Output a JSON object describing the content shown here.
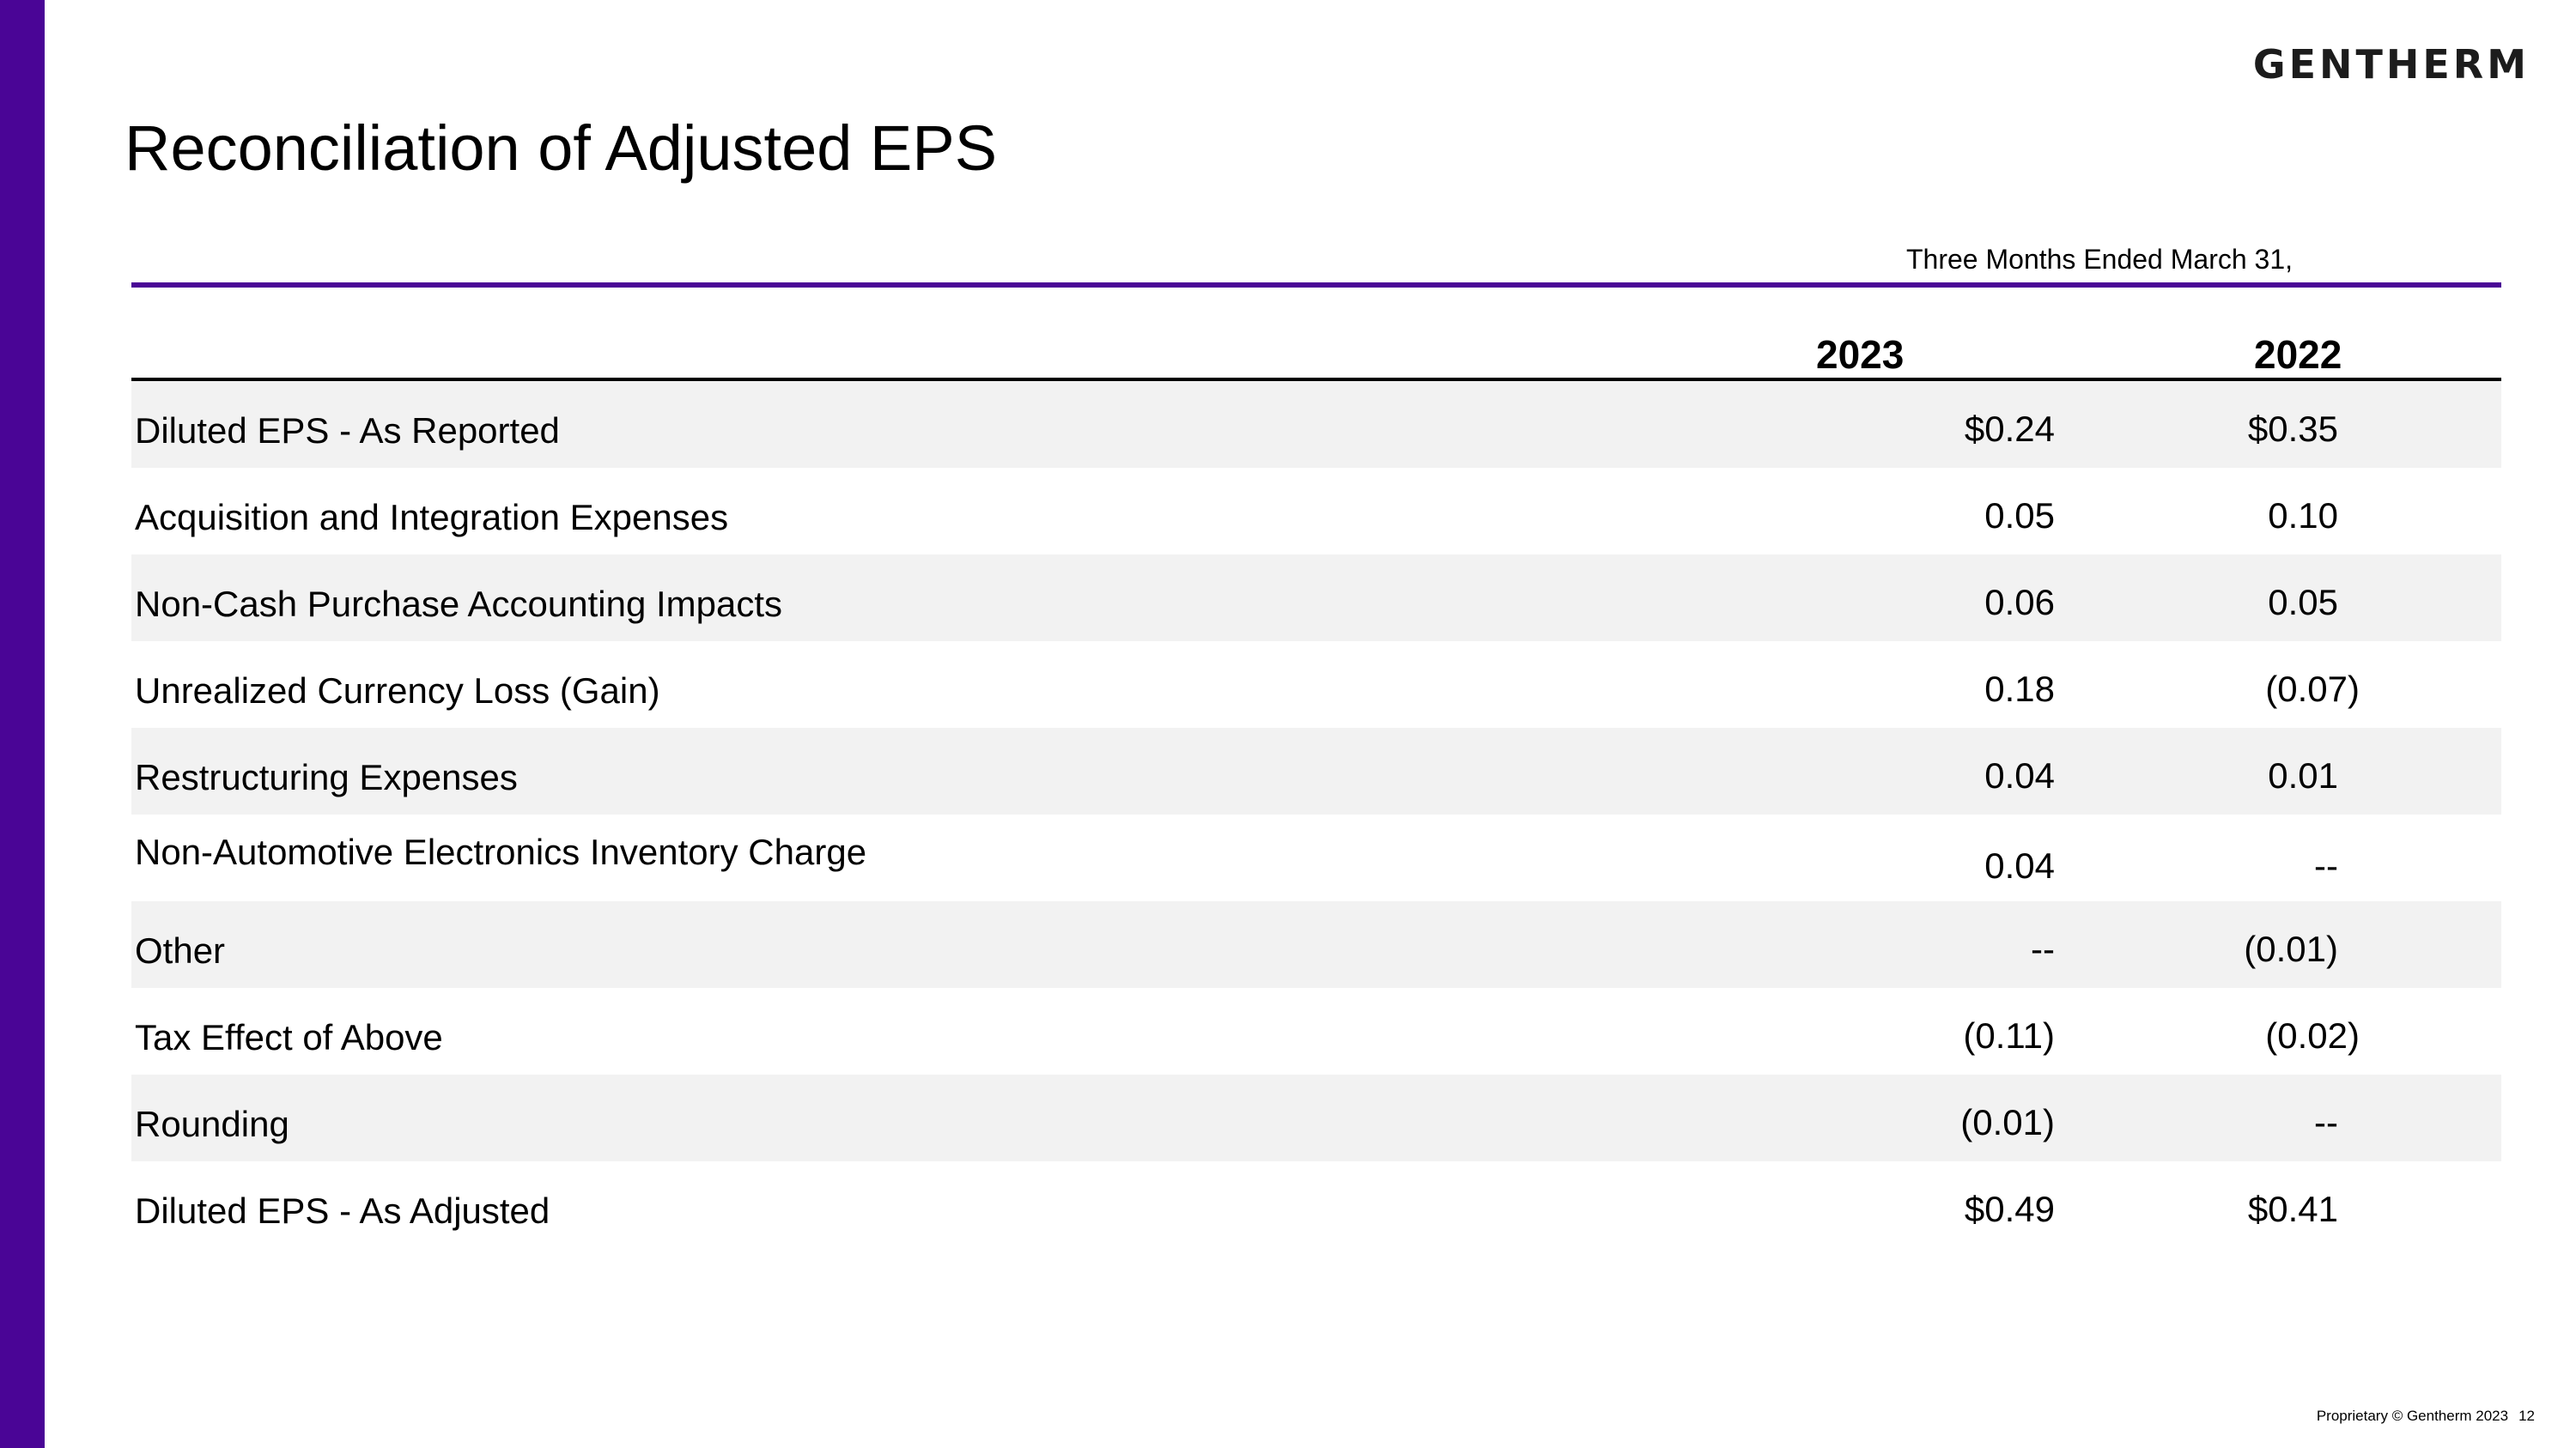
{
  "brand": {
    "logo_text": "GENTHERM",
    "accent_color": "#4a0596"
  },
  "slide": {
    "title": "Reconciliation of Adjusted EPS",
    "period_label": "Three Months Ended March 31,",
    "columns": [
      "2023",
      "2022"
    ]
  },
  "table": {
    "rows": [
      {
        "label": "Diluted EPS - As Reported",
        "v2023": "$0.24",
        "v2022": "$0.35"
      },
      {
        "label": "Acquisition and Integration Expenses",
        "v2023": "0.05",
        "v2022": "0.10"
      },
      {
        "label": "Non-Cash Purchase Accounting Impacts",
        "v2023": "0.06",
        "v2022": "0.05"
      },
      {
        "label": "Unrealized Currency Loss (Gain)",
        "v2023": "0.18",
        "v2022": "(0.07)"
      },
      {
        "label": "Restructuring Expenses",
        "v2023": "0.04",
        "v2022": "0.01"
      },
      {
        "label": "Non-Automotive Electronics Inventory Charge",
        "v2023": "0.04",
        "v2022": "--"
      },
      {
        "label": "Other",
        "v2023": "--",
        "v2022": "(0.01)"
      },
      {
        "label": "Tax Effect of Above",
        "v2023": "(0.11)",
        "v2022": "(0.02)"
      },
      {
        "label": "Rounding",
        "v2023": "(0.01)",
        "v2022": "--"
      },
      {
        "label": "Diluted EPS - As Adjusted",
        "v2023": "$0.49",
        "v2022": "$0.41"
      }
    ]
  },
  "footer": {
    "copyright": "Proprietary © Gentherm 2023",
    "page_number": "12"
  }
}
